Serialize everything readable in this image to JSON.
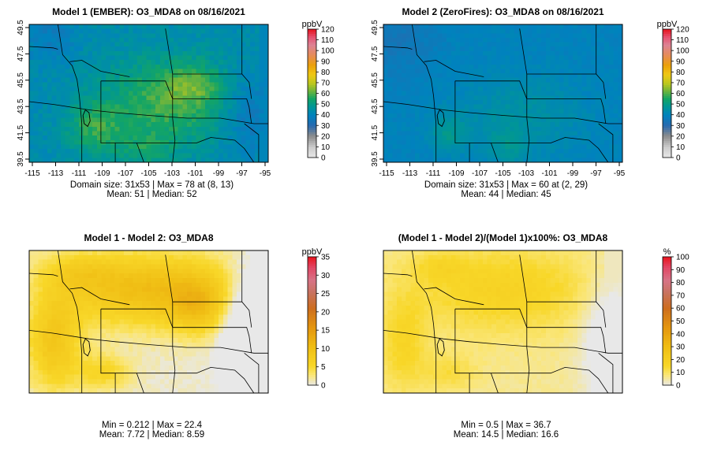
{
  "chart_data": [
    {
      "type": "heatmap",
      "title": "Model 1 (EMBER): O3_MDA8 on 08/16/2021",
      "x_ticks": [
        "-115",
        "-113",
        "-111",
        "-109",
        "-107",
        "-105",
        "-103",
        "-101",
        "-99",
        "-97",
        "-95"
      ],
      "y_ticks": [
        "39.5",
        "41.5",
        "43.5",
        "45.5",
        "47.5",
        "49.5"
      ],
      "legend_title": "ppbV",
      "legend_ticks": [
        "0",
        "10",
        "20",
        "30",
        "40",
        "50",
        "60",
        "70",
        "80",
        "90",
        "100",
        "110",
        "120"
      ],
      "legend_range": [
        0,
        120
      ],
      "palette": "sequential",
      "caption": [
        "Domain size: 31x53 | Max = 78 at (8, 13)",
        "Mean: 51 |  Median: 52"
      ],
      "stats": {
        "domain_rows": 31,
        "domain_cols": 53,
        "max": 78,
        "max_at": [
          8,
          13
        ],
        "mean": 51,
        "median": 52
      }
    },
    {
      "type": "heatmap",
      "title": "Model 2 (ZeroFires): O3_MDA8 on 08/16/2021",
      "x_ticks": [
        "-115",
        "-113",
        "-111",
        "-109",
        "-107",
        "-105",
        "-103",
        "-101",
        "-99",
        "-97",
        "-95"
      ],
      "y_ticks": [
        "39.5",
        "41.5",
        "43.5",
        "45.5",
        "47.5",
        "49.5"
      ],
      "legend_title": "ppbV",
      "legend_ticks": [
        "0",
        "10",
        "20",
        "30",
        "40",
        "50",
        "60",
        "70",
        "80",
        "90",
        "100",
        "110",
        "120"
      ],
      "legend_range": [
        0,
        120
      ],
      "palette": "sequential",
      "caption": [
        "Domain size: 31x53 | Max = 60 at (2, 29)",
        "Mean: 44 |  Median: 45"
      ],
      "stats": {
        "domain_rows": 31,
        "domain_cols": 53,
        "max": 60,
        "max_at": [
          2,
          29
        ],
        "mean": 44,
        "median": 45
      }
    },
    {
      "type": "heatmap",
      "title": "Model 1 - Model 2: O3_MDA8",
      "x_ticks": [],
      "y_ticks": [],
      "legend_title": "ppbV",
      "legend_ticks": [
        "0",
        "5",
        "10",
        "15",
        "20",
        "25",
        "30",
        "35"
      ],
      "legend_range": [
        0,
        35
      ],
      "palette": "difference",
      "caption": [
        "Min = 0.212 | Max = 22.4",
        "Mean: 7.72 |  Median: 8.59"
      ],
      "stats": {
        "min": 0.212,
        "max": 22.4,
        "mean": 7.72,
        "median": 8.59
      }
    },
    {
      "type": "heatmap",
      "title": "(Model 1 - Model 2)/(Model 1)x100%: O3_MDA8",
      "x_ticks": [],
      "y_ticks": [],
      "legend_title": "%",
      "legend_ticks": [
        "0",
        "10",
        "20",
        "30",
        "40",
        "50",
        "60",
        "70",
        "80",
        "90",
        "100"
      ],
      "legend_range": [
        0,
        100
      ],
      "palette": "difference",
      "caption": [
        "Min = 0.5 | Max = 36.7",
        "Mean: 14.5 |  Median: 16.6"
      ],
      "stats": {
        "min": 0.5,
        "max": 36.7,
        "mean": 14.5,
        "median": 16.6
      }
    }
  ]
}
